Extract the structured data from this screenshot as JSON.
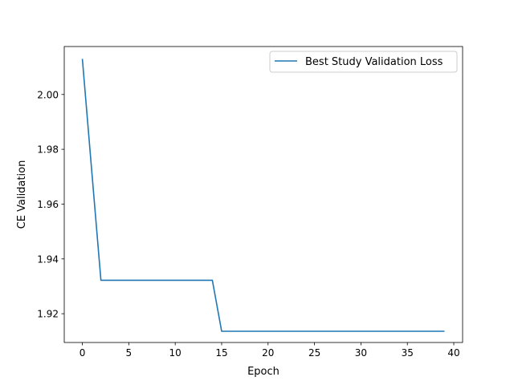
{
  "chart_data": {
    "type": "line",
    "title": "",
    "xlabel": "Epoch",
    "ylabel": "CE Validation",
    "xlim": [
      -1.95,
      40.95
    ],
    "ylim": [
      1.9095,
      2.0175
    ],
    "xticks": [
      0,
      5,
      10,
      15,
      20,
      25,
      30,
      35,
      40
    ],
    "yticks": [
      1.92,
      1.94,
      1.96,
      1.98,
      2.0
    ],
    "ytick_labels": [
      "1.92",
      "1.94",
      "1.96",
      "1.98",
      "2.00"
    ],
    "grid": false,
    "legend_position": "upper right",
    "series": [
      {
        "name": "Best Study Validation Loss",
        "color": "#1f77b4",
        "x": [
          0,
          1,
          2,
          3,
          4,
          5,
          6,
          7,
          8,
          9,
          10,
          11,
          12,
          13,
          14,
          15,
          16,
          17,
          18,
          19,
          20,
          21,
          22,
          23,
          24,
          25,
          26,
          27,
          28,
          29,
          30,
          31,
          32,
          33,
          34,
          35,
          36,
          37,
          38,
          39
        ],
        "y": [
          2.013,
          1.9725,
          1.9322,
          1.9322,
          1.9322,
          1.9322,
          1.9322,
          1.9322,
          1.9322,
          1.9322,
          1.9322,
          1.9322,
          1.9322,
          1.9322,
          1.9322,
          1.9136,
          1.9136,
          1.9136,
          1.9136,
          1.9136,
          1.9136,
          1.9136,
          1.9136,
          1.9136,
          1.9136,
          1.9136,
          1.9136,
          1.9136,
          1.9136,
          1.9136,
          1.9136,
          1.9136,
          1.9136,
          1.9136,
          1.9136,
          1.9136,
          1.9136,
          1.9136,
          1.9136,
          1.9136
        ]
      }
    ]
  }
}
